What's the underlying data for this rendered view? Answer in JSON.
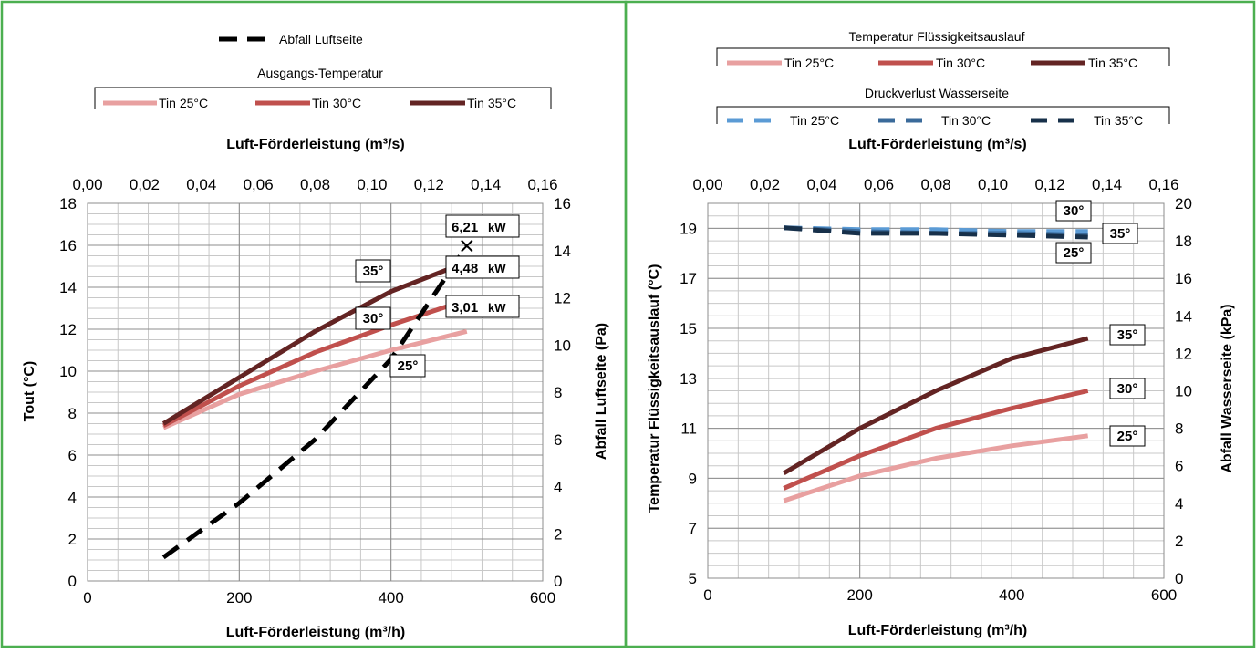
{
  "frame_color": "#4caf50",
  "left": {
    "legend_pressure": {
      "label": "Abfall Luftseite"
    },
    "legend_temp": {
      "title": "Ausgangs-Temperatur",
      "items": [
        "Tin 25°C",
        "Tin 30°C",
        "Tin 35°C"
      ]
    },
    "x_top_title": "Luft-Förderleistung (m³/s)",
    "x_bottom_title": "Luft-Förderleistung (m³/h)",
    "y_left_title": "Tout (°C)",
    "y_right_title": "Abfall Luftseite (Pa)",
    "x_top_ticks": [
      "0,00",
      "0,02",
      "0,04",
      "0,06",
      "0,08",
      "0,10",
      "0,12",
      "0,14",
      "0,16"
    ],
    "x_bottom_ticks": [
      "0",
      "200",
      "400",
      "600"
    ],
    "y_left_ticks": [
      "0",
      "2",
      "4",
      "6",
      "8",
      "10",
      "12",
      "14",
      "16",
      "18"
    ],
    "y_right_ticks": [
      "0",
      "2",
      "4",
      "6",
      "8",
      "10",
      "12",
      "14",
      "16"
    ],
    "curve_labels": [
      "35°",
      "30°",
      "25°"
    ],
    "power_labels": [
      {
        "value": "6,21",
        "unit": "kW"
      },
      {
        "value": "4,48",
        "unit": "kW"
      },
      {
        "value": "3,01",
        "unit": "kW"
      }
    ]
  },
  "right": {
    "legend_temp": {
      "title": "Temperatur Flüssigkeitsauslauf",
      "items": [
        "Tin 25°C",
        "Tin 30°C",
        "Tin 35°C"
      ]
    },
    "legend_pressure": {
      "title": "Druckverlust Wasserseite",
      "items": [
        "Tin 25°C",
        "Tin 30°C",
        "Tin 35°C"
      ]
    },
    "x_top_title": "Luft-Förderleistung (m³/s)",
    "x_bottom_title": "Luft-Förderleistung (m³/h)",
    "y_left_title": "Temperatur Flüssigkeitsauslauf (°C)",
    "y_right_title": "Abfall Wasserseite (kPa)",
    "x_top_ticks": [
      "0,00",
      "0,02",
      "0,04",
      "0,06",
      "0,08",
      "0,10",
      "0,12",
      "0,14",
      "0,16"
    ],
    "x_bottom_ticks": [
      "0",
      "200",
      "400",
      "600"
    ],
    "y_left_ticks": [
      "5",
      "7",
      "9",
      "11",
      "13",
      "15",
      "17",
      "19"
    ],
    "y_right_ticks": [
      "0",
      "2",
      "4",
      "6",
      "8",
      "10",
      "12",
      "14",
      "16",
      "18",
      "20"
    ],
    "curve_labels": [
      "35°",
      "30°",
      "25°"
    ],
    "pressure_labels": [
      "30°",
      "35°",
      "25°"
    ]
  },
  "chart_data": [
    {
      "type": "line",
      "xlabel": "Luft-Förderleistung (m³/h)",
      "x2label": "Luft-Förderleistung (m³/s)",
      "ylabel": "Tout (°C)",
      "y2label": "Abfall Luftseite (Pa)",
      "xlim": [
        0,
        600
      ],
      "ylim": [
        0,
        18
      ],
      "y2lim": [
        0,
        16
      ],
      "x2lim": [
        0,
        0.16
      ],
      "grid": true,
      "series": [
        {
          "name": "Tin 25°C",
          "axis": "left",
          "color": "#e8a0a0",
          "x": [
            100,
            200,
            300,
            400,
            500
          ],
          "y": [
            7.3,
            8.9,
            10.0,
            11.0,
            11.9
          ]
        },
        {
          "name": "Tin 30°C",
          "axis": "left",
          "color": "#c0504d",
          "x": [
            100,
            200,
            300,
            400,
            500
          ],
          "y": [
            7.4,
            9.3,
            10.9,
            12.2,
            13.4
          ]
        },
        {
          "name": "Tin 35°C",
          "axis": "left",
          "color": "#632423",
          "x": [
            100,
            200,
            300,
            400,
            500
          ],
          "y": [
            7.5,
            9.7,
            11.9,
            13.8,
            15.2
          ]
        },
        {
          "name": "Abfall Luftseite",
          "axis": "right",
          "color": "#000000",
          "dashed": true,
          "x": [
            100,
            200,
            300,
            400,
            500
          ],
          "y": [
            1.0,
            3.3,
            6.0,
            9.4,
            14.2
          ]
        }
      ],
      "annotations": [
        {
          "text": "35°",
          "series": "Tin 35°C"
        },
        {
          "text": "30°",
          "series": "Tin 30°C"
        },
        {
          "text": "25°",
          "series": "Tin 25°C"
        },
        {
          "text": "6,21 kW",
          "x": 500,
          "series": "Tin 35°C"
        },
        {
          "text": "4,48 kW",
          "x": 500,
          "series": "Tin 30°C"
        },
        {
          "text": "3,01 kW",
          "x": 500,
          "series": "Tin 25°C"
        }
      ]
    },
    {
      "type": "line",
      "xlabel": "Luft-Förderleistung (m³/h)",
      "x2label": "Luft-Förderleistung (m³/s)",
      "ylabel": "Temperatur Flüssigkeitsauslauf (°C)",
      "y2label": "Abfall Wasserseite (kPa)",
      "xlim": [
        0,
        600
      ],
      "ylim": [
        5,
        20
      ],
      "y2lim": [
        0,
        20
      ],
      "x2lim": [
        0,
        0.16
      ],
      "grid": true,
      "series": [
        {
          "name": "Tin 25°C",
          "axis": "left",
          "color": "#e8a0a0",
          "x": [
            100,
            200,
            300,
            400,
            500
          ],
          "y": [
            8.1,
            9.1,
            9.8,
            10.3,
            10.7
          ]
        },
        {
          "name": "Tin 30°C",
          "axis": "left",
          "color": "#c0504d",
          "x": [
            100,
            200,
            300,
            400,
            500
          ],
          "y": [
            8.6,
            9.9,
            11.0,
            11.8,
            12.5
          ]
        },
        {
          "name": "Tin 35°C",
          "axis": "left",
          "color": "#632423",
          "x": [
            100,
            200,
            300,
            400,
            500
          ],
          "y": [
            9.2,
            11.0,
            12.5,
            13.8,
            14.6
          ]
        },
        {
          "name": "Tin 25°C",
          "axis": "right",
          "color": "#5b9bd5",
          "dashed": true,
          "x": [
            100,
            200,
            300,
            400,
            500
          ],
          "y": [
            18.7,
            18.6,
            18.6,
            18.5,
            18.5
          ]
        },
        {
          "name": "Tin 30°C",
          "axis": "right",
          "color": "#3a6a9a",
          "dashed": true,
          "x": [
            100,
            200,
            300,
            400,
            500
          ],
          "y": [
            18.7,
            18.5,
            18.4,
            18.4,
            18.3
          ]
        },
        {
          "name": "Tin 35°C",
          "axis": "right",
          "color": "#17304a",
          "dashed": true,
          "x": [
            100,
            200,
            300,
            400,
            500
          ],
          "y": [
            18.7,
            18.4,
            18.4,
            18.3,
            18.2
          ]
        }
      ],
      "annotations": [
        {
          "text": "35°",
          "series": "Tin 35°C"
        },
        {
          "text": "30°",
          "series": "Tin 30°C"
        },
        {
          "text": "25°",
          "series": "Tin 25°C"
        }
      ]
    }
  ]
}
